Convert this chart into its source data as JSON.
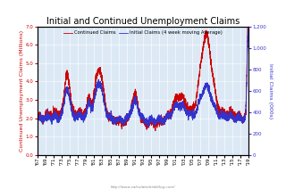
{
  "title": "Initial and Continued Unemployment Claims",
  "legend_continued": "Continued Claims",
  "legend_initial": "Initial Claims (4 week moving Average)",
  "ylabel_left": "Continued Unemployment Claims (Millions)",
  "ylabel_right": "Initial Claims (000s)",
  "watermark": "http://www.calculatedriskblog.com/",
  "ylim_left": [
    0.0,
    7.0
  ],
  "ylim_right": [
    0,
    1200
  ],
  "yticks_left": [
    0.0,
    1.0,
    2.0,
    3.0,
    4.0,
    5.0,
    6.0,
    7.0
  ],
  "yticks_right": [
    0,
    200,
    400,
    600,
    800,
    1000,
    1200
  ],
  "plot_bg": "#dce9f5",
  "grid_color": "#ffffff",
  "line_color_continued": "#cc0000",
  "line_color_initial": "#3333cc",
  "title_fontsize": 7,
  "label_fontsize": 4.5,
  "tick_fontsize": 4,
  "tick_years": [
    "'67",
    "'69",
    "'71",
    "'73",
    "'75",
    "'77",
    "'79",
    "'81",
    "'83",
    "'85",
    "'87",
    "'89",
    "'91",
    "'93",
    "'95",
    "'97",
    "'99",
    "'01",
    "'03",
    "'05",
    "'07",
    "'09",
    "'11",
    "'13",
    "'15",
    "'17",
    "'19"
  ],
  "n_points": 2756
}
